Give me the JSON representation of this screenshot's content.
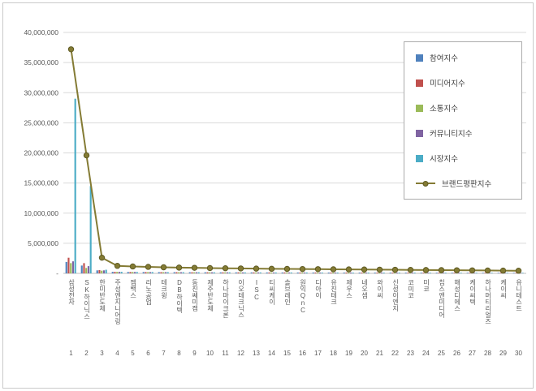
{
  "chart": {
    "background": "#ffffff",
    "frame_border_color": "#c9c9c9",
    "gridline_color": "#d9d9d9",
    "axis_color": "#bfbfbf",
    "tick_label_color": "#595959"
  },
  "chart_data": {
    "type": "bar+line",
    "title": "",
    "xlabel": "",
    "ylabel": "",
    "ylim": [
      0,
      40000000
    ],
    "ytick_step": 5000000,
    "ytick_zero_label": "-",
    "grid": true,
    "legend_position": "upper right",
    "categories": [
      "삼성전자",
      "SK하이닉스",
      "한미반도체",
      "주성엔지니어링",
      "젬백스",
      "리노공업",
      "테크윙",
      "DB하이텍",
      "동진쎄미켐",
      "제주반도체",
      "하나마이크론",
      "이오테크닉스",
      "ISC",
      "티씨케이",
      "솔브레인",
      "원익QnC",
      "디아이",
      "유진테크",
      "제우스",
      "네오셈",
      "와이씨",
      "신성이엔지",
      "코미코",
      "미코",
      "칩스앤미디어",
      "해성디에스",
      "케이씨텍",
      "하나머티리얼즈",
      "케이씨",
      "유니테스트"
    ],
    "rank_labels": [
      "1",
      "2",
      "3",
      "4",
      "5",
      "6",
      "7",
      "8",
      "9",
      "10",
      "11",
      "12",
      "13",
      "14",
      "15",
      "16",
      "17",
      "18",
      "19",
      "20",
      "21",
      "22",
      "23",
      "24",
      "25",
      "26",
      "27",
      "28",
      "29",
      "30"
    ],
    "series": [
      {
        "name": "참여지수",
        "type": "bar",
        "color": "#4f81bd",
        "values": [
          1900000,
          1300000,
          500000,
          250000,
          230000,
          216000,
          202000,
          192000,
          184000,
          176000,
          170000,
          164000,
          158000,
          152000,
          148000,
          144000,
          140000,
          136000,
          132000,
          128000,
          124000,
          120000,
          116000,
          112000,
          108000,
          104000,
          100000,
          96000,
          92000,
          88000
        ]
      },
      {
        "name": "미디어지수",
        "type": "bar",
        "color": "#c0504d",
        "values": [
          2600000,
          1700000,
          550000,
          250000,
          230000,
          216000,
          202000,
          192000,
          184000,
          176000,
          170000,
          164000,
          158000,
          152000,
          148000,
          144000,
          140000,
          136000,
          132000,
          128000,
          124000,
          120000,
          116000,
          112000,
          108000,
          104000,
          100000,
          96000,
          92000,
          88000
        ]
      },
      {
        "name": "소통지수",
        "type": "bar",
        "color": "#9bbb59",
        "values": [
          1700000,
          900000,
          450000,
          250000,
          230000,
          216000,
          202000,
          192000,
          184000,
          176000,
          170000,
          164000,
          158000,
          152000,
          148000,
          144000,
          140000,
          136000,
          132000,
          128000,
          124000,
          120000,
          116000,
          112000,
          108000,
          104000,
          100000,
          96000,
          92000,
          88000
        ]
      },
      {
        "name": "커뮤니티지수",
        "type": "bar",
        "color": "#8064a2",
        "values": [
          2000000,
          1200000,
          500000,
          250000,
          230000,
          216000,
          202000,
          192000,
          184000,
          176000,
          170000,
          164000,
          158000,
          152000,
          148000,
          144000,
          140000,
          136000,
          132000,
          128000,
          124000,
          120000,
          116000,
          112000,
          108000,
          104000,
          100000,
          96000,
          92000,
          88000
        ]
      },
      {
        "name": "시장지수",
        "type": "bar",
        "color": "#4bacc6",
        "values": [
          29000000,
          14500000,
          600000,
          250000,
          230000,
          216000,
          202000,
          192000,
          184000,
          176000,
          170000,
          164000,
          158000,
          152000,
          148000,
          144000,
          140000,
          136000,
          132000,
          128000,
          124000,
          120000,
          116000,
          112000,
          108000,
          104000,
          100000,
          96000,
          92000,
          88000
        ]
      },
      {
        "name": "브랜드평판지수",
        "type": "line",
        "color": "#847b34",
        "marker_border": "#5e5a23",
        "values": [
          37200000,
          19600000,
          2600000,
          1250000,
          1150000,
          1080000,
          1010000,
          960000,
          920000,
          880000,
          850000,
          820000,
          790000,
          760000,
          740000,
          720000,
          700000,
          680000,
          660000,
          640000,
          620000,
          600000,
          580000,
          560000,
          540000,
          520000,
          500000,
          480000,
          460000,
          440000
        ]
      }
    ]
  }
}
